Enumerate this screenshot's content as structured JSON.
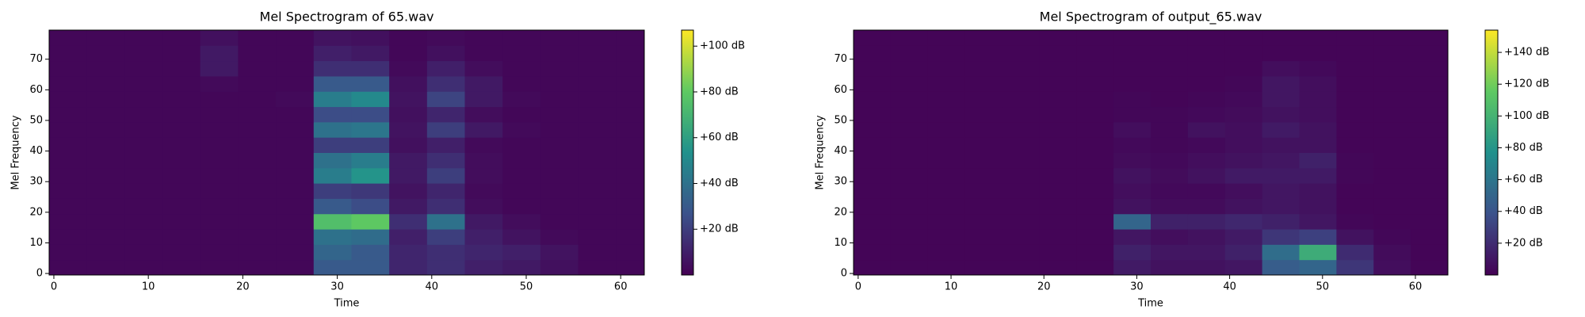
{
  "chart_data": [
    {
      "type": "heatmap",
      "title": "Mel Spectrogram of 65.wav",
      "xlabel": "Time",
      "ylabel": "Mel Frequency",
      "colormap": "viridis",
      "xlim": [
        -0.5,
        62.5
      ],
      "ylim": [
        -0.5,
        79.5
      ],
      "xticks": [
        0,
        10,
        20,
        30,
        40,
        50,
        60
      ],
      "yticks": [
        0,
        10,
        20,
        30,
        40,
        50,
        60,
        70
      ],
      "clim": [
        0,
        107
      ],
      "cticks": [
        {
          "value": 20,
          "label": "+20 dB"
        },
        {
          "value": 40,
          "label": "+40 dB"
        },
        {
          "value": 60,
          "label": "+60 dB"
        },
        {
          "value": 80,
          "label": "+80 dB"
        },
        {
          "value": 100,
          "label": "+100 dB"
        }
      ],
      "x_edges": [
        -0.5,
        3.5,
        7.5,
        11.5,
        15.5,
        19.5,
        23.5,
        27.5,
        31.5,
        35.5,
        39.5,
        43.5,
        47.5,
        51.5,
        55.5,
        59.5,
        62.5
      ],
      "y_edges": [
        -0.5,
        4.5,
        9.5,
        14.5,
        19.5,
        24.5,
        29.5,
        34.5,
        39.5,
        44.5,
        49.5,
        54.5,
        59.5,
        64.5,
        69.5,
        74.5,
        79.5
      ],
      "z": [
        [
          2,
          2,
          2,
          2,
          2,
          2,
          2,
          30,
          30,
          12,
          15,
          10,
          8,
          5,
          2,
          2
        ],
        [
          2,
          2,
          2,
          2,
          2,
          2,
          2,
          35,
          30,
          12,
          15,
          12,
          10,
          6,
          2,
          2
        ],
        [
          2,
          2,
          2,
          2,
          2,
          2,
          2,
          40,
          38,
          10,
          20,
          10,
          6,
          3,
          2,
          2
        ],
        [
          2,
          2,
          2,
          2,
          2,
          2,
          2,
          75,
          80,
          15,
          40,
          8,
          4,
          2,
          2,
          2
        ],
        [
          2,
          2,
          2,
          2,
          2,
          2,
          2,
          30,
          25,
          8,
          15,
          4,
          2,
          2,
          2,
          2
        ],
        [
          2,
          2,
          2,
          2,
          2,
          2,
          2,
          20,
          18,
          6,
          12,
          3,
          2,
          2,
          2,
          2
        ],
        [
          2,
          2,
          2,
          2,
          2,
          2,
          2,
          45,
          55,
          8,
          20,
          4,
          2,
          2,
          2,
          2
        ],
        [
          2,
          2,
          2,
          2,
          2,
          2,
          2,
          40,
          45,
          8,
          15,
          4,
          2,
          2,
          2,
          2
        ],
        [
          2,
          2,
          2,
          2,
          2,
          2,
          2,
          20,
          20,
          5,
          10,
          3,
          2,
          2,
          2,
          2
        ],
        [
          2,
          2,
          2,
          2,
          2,
          2,
          2,
          40,
          42,
          6,
          20,
          8,
          3,
          2,
          2,
          2
        ],
        [
          2,
          2,
          2,
          2,
          2,
          2,
          2,
          25,
          25,
          5,
          12,
          4,
          2,
          2,
          2,
          2
        ],
        [
          2,
          2,
          2,
          2,
          2,
          2,
          3,
          45,
          50,
          6,
          22,
          8,
          3,
          2,
          2,
          2
        ],
        [
          2,
          2,
          2,
          2,
          3,
          2,
          2,
          30,
          30,
          5,
          15,
          8,
          2,
          2,
          2,
          2
        ],
        [
          2,
          2,
          2,
          2,
          8,
          2,
          2,
          15,
          15,
          3,
          10,
          4,
          2,
          2,
          2,
          2
        ],
        [
          2,
          2,
          2,
          2,
          8,
          2,
          2,
          10,
          8,
          2,
          5,
          2,
          2,
          2,
          2,
          2
        ],
        [
          2,
          2,
          2,
          2,
          5,
          2,
          2,
          6,
          5,
          2,
          3,
          2,
          2,
          2,
          2,
          2
        ]
      ]
    },
    {
      "type": "heatmap",
      "title": "Mel Spectrogram of output_65.wav",
      "xlabel": "Time",
      "ylabel": "Mel Frequency",
      "colormap": "viridis",
      "xlim": [
        -0.5,
        63.5
      ],
      "ylim": [
        -0.5,
        79.5
      ],
      "xticks": [
        0,
        10,
        20,
        30,
        40,
        50,
        60
      ],
      "yticks": [
        0,
        10,
        20,
        30,
        40,
        50,
        60,
        70
      ],
      "clim": [
        0,
        154
      ],
      "cticks": [
        {
          "value": 20,
          "label": "+20 dB"
        },
        {
          "value": 40,
          "label": "+40 dB"
        },
        {
          "value": 60,
          "label": "+60 dB"
        },
        {
          "value": 80,
          "label": "+80 dB"
        },
        {
          "value": 100,
          "label": "+100 dB"
        },
        {
          "value": 120,
          "label": "+120 dB"
        },
        {
          "value": 140,
          "label": "+140 dB"
        }
      ],
      "x_edges": [
        -0.5,
        3.5,
        7.5,
        11.5,
        15.5,
        19.5,
        23.5,
        27.5,
        31.5,
        35.5,
        39.5,
        43.5,
        47.5,
        51.5,
        55.5,
        59.5,
        63.5
      ],
      "y_edges": [
        -0.5,
        4.5,
        9.5,
        14.5,
        19.5,
        24.5,
        29.5,
        34.5,
        39.5,
        44.5,
        49.5,
        54.5,
        59.5,
        64.5,
        69.5,
        74.5,
        79.5
      ],
      "z": [
        [
          2,
          2,
          2,
          2,
          2,
          2,
          2,
          12,
          8,
          8,
          10,
          45,
          50,
          25,
          6,
          2
        ],
        [
          2,
          2,
          2,
          2,
          2,
          2,
          2,
          15,
          10,
          10,
          15,
          55,
          95,
          20,
          5,
          2
        ],
        [
          2,
          2,
          2,
          2,
          2,
          2,
          2,
          10,
          6,
          8,
          12,
          25,
          30,
          8,
          3,
          2
        ],
        [
          2,
          2,
          2,
          2,
          2,
          2,
          2,
          50,
          15,
          15,
          18,
          15,
          10,
          3,
          2,
          2
        ],
        [
          2,
          2,
          2,
          2,
          2,
          2,
          2,
          8,
          5,
          5,
          8,
          10,
          8,
          2,
          2,
          2
        ],
        [
          2,
          2,
          2,
          2,
          2,
          2,
          2,
          6,
          4,
          4,
          6,
          10,
          8,
          2,
          2,
          2
        ],
        [
          2,
          2,
          2,
          2,
          2,
          2,
          2,
          8,
          5,
          8,
          12,
          12,
          12,
          3,
          2,
          2
        ],
        [
          2,
          2,
          2,
          2,
          2,
          2,
          2,
          5,
          4,
          6,
          8,
          10,
          15,
          3,
          2,
          2
        ],
        [
          2,
          2,
          2,
          2,
          2,
          2,
          2,
          4,
          3,
          4,
          6,
          8,
          8,
          2,
          2,
          2
        ],
        [
          2,
          2,
          2,
          2,
          2,
          2,
          2,
          6,
          3,
          8,
          6,
          12,
          8,
          2,
          2,
          2
        ],
        [
          2,
          2,
          2,
          2,
          2,
          2,
          2,
          3,
          3,
          4,
          5,
          8,
          6,
          2,
          2,
          2
        ],
        [
          2,
          2,
          2,
          2,
          2,
          2,
          2,
          3,
          2,
          3,
          4,
          10,
          6,
          2,
          2,
          2
        ],
        [
          2,
          2,
          2,
          2,
          2,
          2,
          2,
          2,
          2,
          2,
          3,
          10,
          6,
          2,
          2,
          2
        ],
        [
          2,
          2,
          2,
          2,
          2,
          2,
          2,
          2,
          2,
          2,
          2,
          6,
          4,
          2,
          2,
          2
        ],
        [
          2,
          2,
          2,
          2,
          2,
          2,
          2,
          2,
          2,
          2,
          2,
          2,
          2,
          2,
          2,
          2
        ],
        [
          2,
          2,
          2,
          2,
          2,
          2,
          2,
          2,
          2,
          2,
          2,
          2,
          2,
          2,
          2,
          2
        ]
      ]
    }
  ]
}
